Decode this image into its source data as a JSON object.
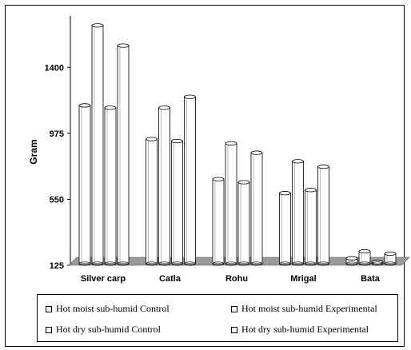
{
  "chart_data": {
    "type": "bar",
    "title": "",
    "xlabel": "",
    "ylabel": "Gram",
    "ylim": [
      125,
      1700
    ],
    "yticks": [
      125,
      550,
      975,
      1400
    ],
    "grid": false,
    "legend_position": "bottom",
    "categories": [
      "Silver carp",
      "Catla",
      "Rohu",
      "Mrigal",
      "Bata"
    ],
    "series": [
      {
        "name": "Hot moist sub-humid  Control",
        "values": [
          1155,
          938,
          680,
          590,
          170
        ]
      },
      {
        "name": "Hot moist sub-humid  Experimental",
        "values": [
          1670,
          1140,
          910,
          795,
          215
        ]
      },
      {
        "name": "Hot dry sub-humid  Control",
        "values": [
          1140,
          925,
          660,
          610,
          145
        ]
      },
      {
        "name": "Hot dry sub-humid  Experimental",
        "values": [
          1540,
          1210,
          850,
          760,
          200
        ]
      }
    ],
    "colors": {
      "bar_fill": "#ffffff",
      "bar_stroke": "#000000",
      "floor": "#9a9a9a"
    }
  }
}
